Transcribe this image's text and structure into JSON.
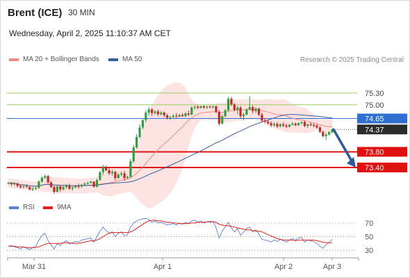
{
  "header": {
    "symbol": "Brent (ICE)",
    "timeframe": "30 MIN",
    "datetime": "Wednesday, April 2, 2025 11:10:37 AM CET"
  },
  "credit": "Research © 2025 Trading Central",
  "colors": {
    "bullish": "#2e9e3e",
    "bearish": "#c62828",
    "ma50": "#3a5e9c",
    "ma20": "#f28b82",
    "band_fill": "#fde3e1",
    "resistance": "#9ccc65",
    "pivot": "#2e6fd1",
    "support": "#e01010",
    "last_price_tag": "#2b2b2b",
    "forecast_arrow": "#2d5a9a",
    "rsi": "#5b7fd6",
    "rsi_ma": "#e02020"
  },
  "legend_main": [
    {
      "label": "MA 20 + Bollinger Bands",
      "color": "#f28b82"
    },
    {
      "label": "MA 50",
      "color": "#3a5e9c"
    }
  ],
  "legend_rsi": [
    {
      "label": "RSI",
      "color": "#5b7fd6"
    },
    {
      "label": "9MA",
      "color": "#e02020"
    }
  ],
  "chart_data": [
    {
      "type": "candlestick",
      "title": "Brent (ICE)",
      "timeframe": "30 MIN",
      "x_tick_labels": [
        "Mar 31",
        "Apr 1",
        "Apr 2",
        "Apr 3"
      ],
      "ylim": [
        72.62,
        75.9
      ],
      "levels": [
        {
          "label": "75.30",
          "value": 75.3,
          "kind": "resistance"
        },
        {
          "label": "75.00",
          "value": 75.0,
          "kind": "resistance"
        },
        {
          "label": "74.65",
          "value": 74.65,
          "kind": "pivot"
        },
        {
          "label": "74.37",
          "value": 74.37,
          "kind": "last"
        },
        {
          "label": "73.80",
          "value": 73.8,
          "kind": "support"
        },
        {
          "label": "73.40",
          "value": 73.4,
          "kind": "support"
        }
      ],
      "forecast": {
        "from": 74.37,
        "to": 73.4,
        "direction": "down"
      },
      "candles": [
        [
          72.99,
          73.03,
          72.96,
          73.01
        ],
        [
          73.01,
          73.03,
          72.93,
          72.98
        ],
        [
          72.98,
          73.03,
          72.94,
          72.99
        ],
        [
          72.99,
          73.02,
          72.89,
          72.93
        ],
        [
          72.93,
          72.97,
          72.86,
          72.9
        ],
        [
          72.9,
          72.97,
          72.86,
          72.92
        ],
        [
          72.92,
          72.97,
          72.88,
          72.9
        ],
        [
          72.9,
          72.92,
          72.82,
          72.84
        ],
        [
          72.84,
          72.9,
          72.8,
          72.86
        ],
        [
          72.86,
          72.92,
          72.83,
          72.88
        ],
        [
          72.88,
          73.07,
          72.86,
          73.04
        ],
        [
          73.04,
          73.17,
          73.01,
          73.14
        ],
        [
          73.14,
          73.22,
          73.11,
          73.18
        ],
        [
          73.18,
          73.21,
          72.99,
          73.02
        ],
        [
          73.02,
          73.05,
          72.88,
          72.9
        ],
        [
          72.9,
          72.94,
          72.73,
          72.78
        ],
        [
          72.78,
          72.95,
          72.76,
          72.92
        ],
        [
          72.92,
          72.96,
          72.79,
          72.84
        ],
        [
          72.84,
          72.93,
          72.82,
          72.9
        ],
        [
          72.9,
          72.97,
          72.86,
          72.94
        ],
        [
          72.94,
          72.99,
          72.83,
          72.86
        ],
        [
          72.86,
          72.92,
          72.81,
          72.89
        ],
        [
          72.89,
          72.95,
          72.87,
          72.93
        ],
        [
          72.93,
          72.99,
          72.86,
          72.92
        ],
        [
          72.92,
          72.98,
          72.88,
          72.96
        ],
        [
          72.96,
          73.02,
          72.94,
          72.99
        ],
        [
          72.99,
          73.04,
          72.96,
          73.01
        ],
        [
          73.01,
          73.06,
          72.99,
          73.04
        ],
        [
          73.04,
          73.05,
          72.89,
          72.91
        ],
        [
          72.91,
          73.11,
          72.89,
          73.08
        ],
        [
          73.08,
          73.31,
          73.06,
          73.28
        ],
        [
          73.28,
          73.47,
          73.21,
          73.41
        ],
        [
          73.41,
          73.45,
          73.31,
          73.33
        ],
        [
          73.33,
          73.39,
          73.21,
          73.25
        ],
        [
          73.25,
          73.35,
          73.19,
          73.29
        ],
        [
          73.29,
          73.32,
          73.07,
          73.13
        ],
        [
          73.13,
          73.26,
          73.11,
          73.22
        ],
        [
          73.22,
          73.3,
          73.17,
          73.25
        ],
        [
          73.25,
          73.31,
          73.06,
          73.13
        ],
        [
          73.13,
          73.19,
          73.11,
          73.16
        ],
        [
          73.16,
          73.62,
          73.14,
          73.56
        ],
        [
          73.56,
          73.97,
          73.52,
          73.91
        ],
        [
          73.91,
          74.25,
          73.88,
          74.18
        ],
        [
          74.18,
          74.5,
          74.14,
          74.42
        ],
        [
          74.42,
          74.63,
          74.37,
          74.61
        ],
        [
          74.61,
          74.86,
          74.55,
          74.8
        ],
        [
          74.8,
          74.94,
          74.73,
          74.88
        ],
        [
          74.88,
          74.92,
          74.71,
          74.79
        ],
        [
          74.79,
          74.86,
          74.75,
          74.83
        ],
        [
          74.83,
          74.88,
          74.71,
          74.76
        ],
        [
          74.76,
          74.84,
          74.73,
          74.8
        ],
        [
          74.8,
          74.83,
          74.69,
          74.73
        ],
        [
          74.73,
          74.77,
          74.63,
          74.67
        ],
        [
          74.67,
          74.72,
          74.61,
          74.69
        ],
        [
          74.69,
          74.76,
          74.65,
          74.72
        ],
        [
          74.72,
          74.79,
          74.66,
          74.7
        ],
        [
          74.7,
          74.77,
          74.68,
          74.74
        ],
        [
          74.74,
          74.79,
          74.69,
          74.71
        ],
        [
          74.71,
          74.81,
          74.68,
          74.78
        ],
        [
          74.78,
          74.85,
          74.71,
          74.75
        ],
        [
          74.75,
          74.96,
          74.73,
          74.93
        ],
        [
          74.93,
          74.98,
          74.87,
          74.95
        ],
        [
          74.95,
          74.99,
          74.89,
          74.92
        ],
        [
          74.92,
          74.98,
          74.9,
          74.96
        ],
        [
          74.96,
          74.99,
          74.9,
          74.93
        ],
        [
          74.93,
          74.98,
          74.89,
          74.95
        ],
        [
          74.95,
          74.98,
          74.91,
          74.94
        ],
        [
          74.94,
          74.98,
          74.9,
          74.96
        ],
        [
          74.96,
          74.98,
          74.79,
          74.82
        ],
        [
          74.82,
          74.87,
          74.47,
          74.52
        ],
        [
          74.52,
          74.75,
          74.5,
          74.71
        ],
        [
          74.71,
          74.89,
          74.68,
          74.86
        ],
        [
          74.86,
          75.2,
          74.83,
          75.15
        ],
        [
          75.15,
          75.2,
          74.97,
          75.01
        ],
        [
          75.01,
          75.04,
          74.83,
          74.87
        ],
        [
          74.87,
          74.97,
          74.76,
          74.93
        ],
        [
          74.93,
          74.97,
          74.66,
          74.71
        ],
        [
          74.71,
          74.79,
          74.61,
          74.75
        ],
        [
          74.75,
          74.91,
          74.73,
          74.88
        ],
        [
          74.88,
          75.22,
          74.86,
          74.94
        ],
        [
          74.94,
          74.99,
          74.78,
          74.84
        ],
        [
          74.84,
          74.94,
          74.79,
          74.9
        ],
        [
          74.9,
          74.93,
          74.71,
          74.75
        ],
        [
          74.75,
          74.8,
          74.55,
          74.6
        ],
        [
          74.6,
          74.65,
          74.53,
          74.57
        ],
        [
          74.57,
          74.62,
          74.49,
          74.53
        ],
        [
          74.53,
          74.58,
          74.43,
          74.48
        ],
        [
          74.48,
          74.55,
          74.44,
          74.51
        ],
        [
          74.51,
          74.56,
          74.41,
          74.45
        ],
        [
          74.45,
          74.53,
          74.42,
          74.5
        ],
        [
          74.5,
          74.55,
          74.43,
          74.47
        ],
        [
          74.47,
          74.52,
          74.41,
          74.44
        ],
        [
          74.44,
          74.51,
          74.42,
          74.49
        ],
        [
          74.49,
          74.56,
          74.47,
          74.52
        ],
        [
          74.52,
          74.55,
          74.45,
          74.48
        ],
        [
          74.48,
          74.55,
          74.46,
          74.53
        ],
        [
          74.53,
          74.58,
          74.5,
          74.56
        ],
        [
          74.56,
          74.59,
          74.43,
          74.46
        ],
        [
          74.46,
          74.52,
          74.41,
          74.5
        ],
        [
          74.5,
          74.55,
          74.45,
          74.48
        ],
        [
          74.48,
          74.52,
          74.43,
          74.47
        ],
        [
          74.47,
          74.5,
          74.39,
          74.42
        ],
        [
          74.42,
          74.45,
          74.28,
          74.31
        ],
        [
          74.31,
          74.34,
          74.17,
          74.2
        ],
        [
          74.2,
          74.28,
          74.11,
          74.24
        ],
        [
          74.24,
          74.33,
          74.21,
          74.3
        ],
        [
          74.3,
          74.39,
          74.27,
          74.37
        ]
      ]
    },
    {
      "type": "line",
      "title": "RSI",
      "y_tick_labels": [
        "70",
        "50",
        "30"
      ],
      "ylim": [
        22,
        78
      ],
      "series": [
        {
          "name": "RSI",
          "values": [
            36,
            37,
            35,
            34,
            32,
            35,
            33,
            31,
            34,
            36,
            45,
            52,
            55,
            44,
            38,
            32,
            40,
            37,
            41,
            44,
            39,
            41,
            43,
            42,
            45,
            46,
            47,
            48,
            42,
            50,
            58,
            64,
            59,
            55,
            57,
            50,
            55,
            57,
            51,
            53,
            64,
            70,
            73,
            75,
            76,
            77,
            75,
            71,
            73,
            70,
            71,
            69,
            67,
            68,
            69,
            67,
            70,
            68,
            71,
            69,
            73,
            74,
            71,
            73,
            70,
            72,
            71,
            72,
            63,
            48,
            58,
            64,
            71,
            63,
            57,
            62,
            52,
            56,
            62,
            64,
            57,
            60,
            54,
            46,
            45,
            44,
            42,
            45,
            43,
            46,
            44,
            42,
            45,
            47,
            45,
            48,
            49,
            42,
            45,
            44,
            43,
            40,
            36,
            33,
            38,
            42,
            46
          ]
        },
        {
          "name": "9MA",
          "values": [
            36,
            36,
            36,
            35,
            35,
            35,
            34,
            34,
            34,
            34,
            35,
            37,
            39,
            40,
            40,
            40,
            40,
            40,
            41,
            41,
            41,
            40,
            40,
            40,
            41,
            42,
            43,
            44,
            44,
            45,
            47,
            50,
            53,
            55,
            56,
            56,
            56,
            56,
            56,
            56,
            57,
            59,
            62,
            65,
            68,
            71,
            73,
            74,
            74,
            73,
            73,
            72,
            71,
            71,
            70,
            70,
            69,
            69,
            69,
            69,
            70,
            70,
            71,
            71,
            71,
            72,
            72,
            72,
            71,
            68,
            67,
            66,
            66,
            65,
            64,
            63,
            62,
            61,
            60,
            60,
            59,
            58,
            58,
            57,
            55,
            53,
            51,
            49,
            47,
            46,
            45,
            45,
            45,
            45,
            44,
            45,
            45,
            45,
            45,
            45,
            45,
            44,
            43,
            42,
            41,
            41,
            41
          ]
        }
      ]
    }
  ]
}
